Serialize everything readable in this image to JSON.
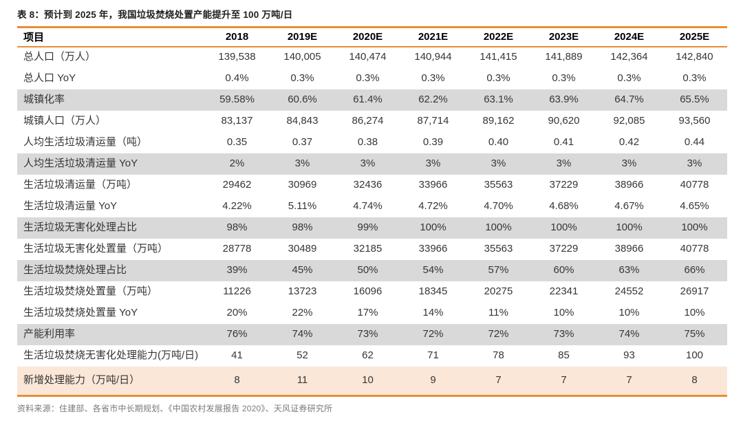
{
  "title": "表 8：预计到 2025 年，我国垃圾焚烧处置产能提升至 100 万吨/日",
  "source": "资料来源：住建部、各省市中长期规划、《中国农村发展报告 2020》、天风证券研究所",
  "colors": {
    "accent_orange": "#EA8C33",
    "row_gray_bg": "#D9D9D9",
    "row_orange_bg": "#FBE7D8"
  },
  "chart_data": {
    "type": "table",
    "columns": [
      "项目",
      "2018",
      "2019E",
      "2020E",
      "2021E",
      "2022E",
      "2023E",
      "2024E",
      "2025E"
    ],
    "rows": [
      {
        "label": "总人口（万人）",
        "bg": "white",
        "values": [
          "139,538",
          "140,005",
          "140,474",
          "140,944",
          "141,415",
          "141,889",
          "142,364",
          "142,840"
        ]
      },
      {
        "label": "总人口 YoY",
        "bg": "white",
        "values": [
          "0.4%",
          "0.3%",
          "0.3%",
          "0.3%",
          "0.3%",
          "0.3%",
          "0.3%",
          "0.3%"
        ]
      },
      {
        "label": "城镇化率",
        "bg": "gray",
        "values": [
          "59.58%",
          "60.6%",
          "61.4%",
          "62.2%",
          "63.1%",
          "63.9%",
          "64.7%",
          "65.5%"
        ]
      },
      {
        "label": "城镇人口（万人）",
        "bg": "white",
        "values": [
          "83,137",
          "84,843",
          "86,274",
          "87,714",
          "89,162",
          "90,620",
          "92,085",
          "93,560"
        ]
      },
      {
        "label": "人均生活垃圾清运量（吨）",
        "bg": "white",
        "values": [
          "0.35",
          "0.37",
          "0.38",
          "0.39",
          "0.40",
          "0.41",
          "0.42",
          "0.44"
        ]
      },
      {
        "label": "人均生活垃圾清运量 YoY",
        "bg": "gray",
        "values": [
          "2%",
          "3%",
          "3%",
          "3%",
          "3%",
          "3%",
          "3%",
          "3%"
        ]
      },
      {
        "label": "生活垃圾清运量（万吨）",
        "bg": "white",
        "values": [
          "29462",
          "30969",
          "32436",
          "33966",
          "35563",
          "37229",
          "38966",
          "40778"
        ]
      },
      {
        "label": "生活垃圾清运量 YoY",
        "bg": "white",
        "values": [
          "4.22%",
          "5.11%",
          "4.74%",
          "4.72%",
          "4.70%",
          "4.68%",
          "4.67%",
          "4.65%"
        ]
      },
      {
        "label": "生活垃圾无害化处理占比",
        "bg": "gray",
        "values": [
          "98%",
          "98%",
          "99%",
          "100%",
          "100%",
          "100%",
          "100%",
          "100%"
        ]
      },
      {
        "label": "生活垃圾无害化处置量（万吨）",
        "bg": "white",
        "values": [
          "28778",
          "30489",
          "32185",
          "33966",
          "35563",
          "37229",
          "38966",
          "40778"
        ]
      },
      {
        "label": "生活垃圾焚烧处理占比",
        "bg": "gray",
        "values": [
          "39%",
          "45%",
          "50%",
          "54%",
          "57%",
          "60%",
          "63%",
          "66%"
        ]
      },
      {
        "label": "生活垃圾焚烧处置量（万吨）",
        "bg": "white",
        "values": [
          "11226",
          "13723",
          "16096",
          "18345",
          "20275",
          "22341",
          "24552",
          "26917"
        ]
      },
      {
        "label": "生活垃圾焚烧处置量 YoY",
        "bg": "white",
        "values": [
          "20%",
          "22%",
          "17%",
          "14%",
          "11%",
          "10%",
          "10%",
          "10%"
        ]
      },
      {
        "label": "产能利用率",
        "bg": "gray",
        "values": [
          "76%",
          "74%",
          "73%",
          "72%",
          "72%",
          "73%",
          "74%",
          "75%"
        ]
      },
      {
        "label": "生活垃圾焚烧无害化处理能力(万吨/日)",
        "bg": "white",
        "values": [
          "41",
          "52",
          "62",
          "71",
          "78",
          "85",
          "93",
          "100"
        ]
      },
      {
        "label": "新增处理能力（万吨/日）",
        "bg": "orange",
        "values": [
          "8",
          "11",
          "10",
          "9",
          "7",
          "7",
          "7",
          "8"
        ]
      }
    ]
  }
}
